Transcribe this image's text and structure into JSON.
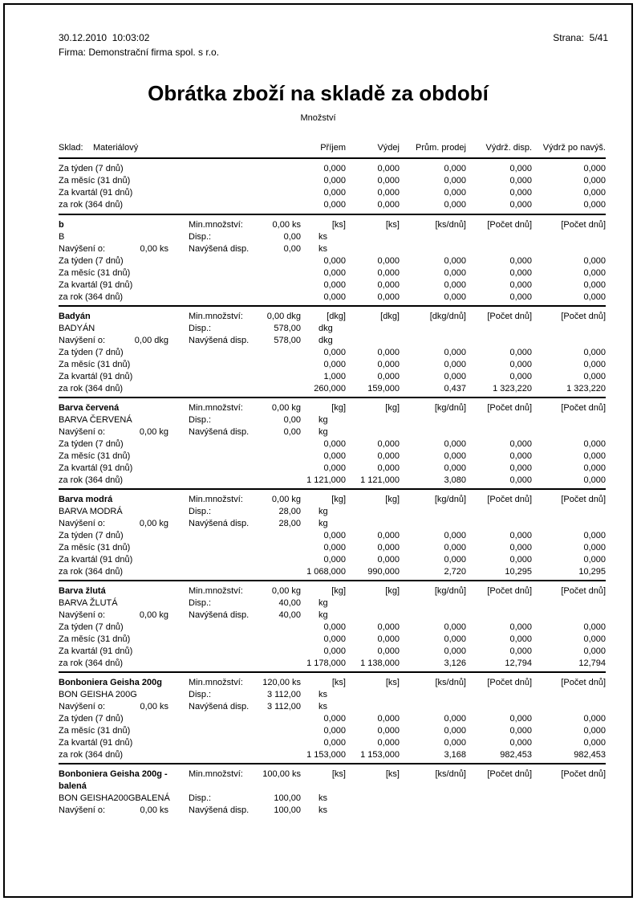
{
  "colors": {
    "text": "#000000",
    "border": "#000000",
    "page_bg": "#ffffff"
  },
  "header": {
    "datetime": "30.12.2010  10:03:02",
    "company": "Firma: Demonstrační firma spol. s r.o.",
    "page_label": "Strana:",
    "page_value": "5/41"
  },
  "title": "Obrátka zboží na skladě za období",
  "subtitle": "Množství",
  "table": {
    "warehouse_label": "Sklad:",
    "warehouse_name": "Materiálový",
    "columns": [
      "Příjem",
      "Výdej",
      "Prům. prodej",
      "Výdrž. disp.",
      "Výdrž po navýš."
    ],
    "period_labels": [
      "Za týden (7 dnů)",
      "Za měsíc (31 dnů)",
      "Za kvartál (91 dnů)",
      "za rok (364 dnů)"
    ],
    "row_labels": {
      "min_qty": "Min.množství:",
      "disp": "Disp.:",
      "increase": "Navýšení o:",
      "increased_disp": "Navýšená disp."
    },
    "summary_rows": [
      [
        "0,000",
        "0,000",
        "0,000",
        "0,000",
        "0,000"
      ],
      [
        "0,000",
        "0,000",
        "0,000",
        "0,000",
        "0,000"
      ],
      [
        "0,000",
        "0,000",
        "0,000",
        "0,000",
        "0,000"
      ],
      [
        "0,000",
        "0,000",
        "0,000",
        "0,000",
        "0,000"
      ]
    ],
    "items": [
      {
        "name": "b",
        "code": "B",
        "unit": "ks",
        "min_qty": "0,00 ks",
        "disp": "0,00",
        "increase": "0,00 ks",
        "increased_disp": "0,00",
        "unit_cols": [
          "[ks]",
          "[ks]",
          "[ks/dnů]",
          "[Počet dnů]",
          "[Počet dnů]"
        ],
        "period_rows": [
          [
            "0,000",
            "0,000",
            "0,000",
            "0,000",
            "0,000"
          ],
          [
            "0,000",
            "0,000",
            "0,000",
            "0,000",
            "0,000"
          ],
          [
            "0,000",
            "0,000",
            "0,000",
            "0,000",
            "0,000"
          ],
          [
            "0,000",
            "0,000",
            "0,000",
            "0,000",
            "0,000"
          ]
        ]
      },
      {
        "name": "Badyán",
        "code": "BADYÁN",
        "unit": "dkg",
        "min_qty": "0,00 dkg",
        "disp": "578,00",
        "increase": "0,00 dkg",
        "increased_disp": "578,00",
        "unit_cols": [
          "[dkg]",
          "[dkg]",
          "[dkg/dnů]",
          "[Počet dnů]",
          "[Počet dnů]"
        ],
        "period_rows": [
          [
            "0,000",
            "0,000",
            "0,000",
            "0,000",
            "0,000"
          ],
          [
            "0,000",
            "0,000",
            "0,000",
            "0,000",
            "0,000"
          ],
          [
            "1,000",
            "0,000",
            "0,000",
            "0,000",
            "0,000"
          ],
          [
            "260,000",
            "159,000",
            "0,437",
            "1 323,220",
            "1 323,220"
          ]
        ]
      },
      {
        "name": "Barva červená",
        "code": "BARVA ČERVENÁ",
        "unit": "kg",
        "min_qty": "0,00 kg",
        "disp": "0,00",
        "increase": "0,00 kg",
        "increased_disp": "0,00",
        "unit_cols": [
          "[kg]",
          "[kg]",
          "[kg/dnů]",
          "[Počet dnů]",
          "[Počet dnů]"
        ],
        "period_rows": [
          [
            "0,000",
            "0,000",
            "0,000",
            "0,000",
            "0,000"
          ],
          [
            "0,000",
            "0,000",
            "0,000",
            "0,000",
            "0,000"
          ],
          [
            "0,000",
            "0,000",
            "0,000",
            "0,000",
            "0,000"
          ],
          [
            "1 121,000",
            "1 121,000",
            "3,080",
            "0,000",
            "0,000"
          ]
        ]
      },
      {
        "name": "Barva modrá",
        "code": "BARVA MODRÁ",
        "unit": "kg",
        "min_qty": "0,00 kg",
        "disp": "28,00",
        "increase": "0,00 kg",
        "increased_disp": "28,00",
        "unit_cols": [
          "[kg]",
          "[kg]",
          "[kg/dnů]",
          "[Počet dnů]",
          "[Počet dnů]"
        ],
        "period_rows": [
          [
            "0,000",
            "0,000",
            "0,000",
            "0,000",
            "0,000"
          ],
          [
            "0,000",
            "0,000",
            "0,000",
            "0,000",
            "0,000"
          ],
          [
            "0,000",
            "0,000",
            "0,000",
            "0,000",
            "0,000"
          ],
          [
            "1 068,000",
            "990,000",
            "2,720",
            "10,295",
            "10,295"
          ]
        ]
      },
      {
        "name": "Barva žlutá",
        "code": "BARVA ŽLUTÁ",
        "unit": "kg",
        "min_qty": "0,00 kg",
        "disp": "40,00",
        "increase": "0,00 kg",
        "increased_disp": "40,00",
        "unit_cols": [
          "[kg]",
          "[kg]",
          "[kg/dnů]",
          "[Počet dnů]",
          "[Počet dnů]"
        ],
        "period_rows": [
          [
            "0,000",
            "0,000",
            "0,000",
            "0,000",
            "0,000"
          ],
          [
            "0,000",
            "0,000",
            "0,000",
            "0,000",
            "0,000"
          ],
          [
            "0,000",
            "0,000",
            "0,000",
            "0,000",
            "0,000"
          ],
          [
            "1 178,000",
            "1 138,000",
            "3,126",
            "12,794",
            "12,794"
          ]
        ]
      },
      {
        "name": "Bonboniera Geisha 200g",
        "code": "BON GEISHA 200G",
        "unit": "ks",
        "min_qty": "120,00 ks",
        "disp": "3 112,00",
        "increase": "0,00 ks",
        "increased_disp": "3 112,00",
        "unit_cols": [
          "[ks]",
          "[ks]",
          "[ks/dnů]",
          "[Počet dnů]",
          "[Počet dnů]"
        ],
        "period_rows": [
          [
            "0,000",
            "0,000",
            "0,000",
            "0,000",
            "0,000"
          ],
          [
            "0,000",
            "0,000",
            "0,000",
            "0,000",
            "0,000"
          ],
          [
            "0,000",
            "0,000",
            "0,000",
            "0,000",
            "0,000"
          ],
          [
            "1 153,000",
            "1 153,000",
            "3,168",
            "982,453",
            "982,453"
          ]
        ]
      },
      {
        "name": "Bonboniera Geisha 200g -",
        "name2": "balená",
        "code": "BON GEISHA200GBALENÁ",
        "unit": "ks",
        "min_qty": "100,00 ks",
        "disp": "100,00",
        "increase": "0,00 ks",
        "increased_disp": "100,00",
        "unit_cols": [
          "[ks]",
          "[ks]",
          "[ks/dnů]",
          "[Počet dnů]",
          "[Počet dnů]"
        ],
        "period_rows": []
      }
    ]
  }
}
